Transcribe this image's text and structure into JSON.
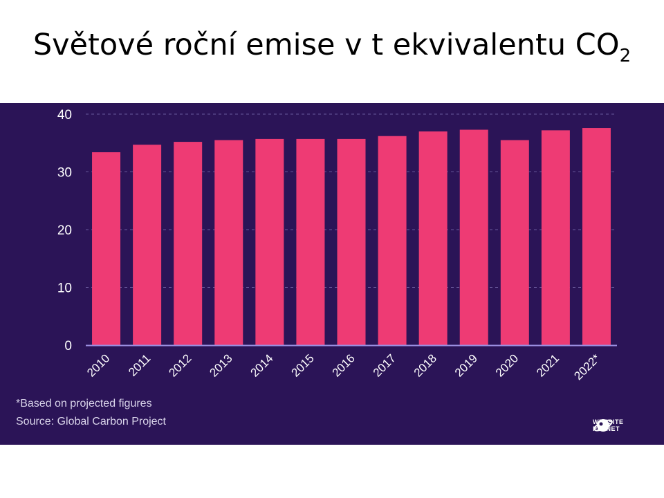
{
  "slide": {
    "title_main": "Světové roční emise v t ekvivalentu CO",
    "title_subscript": "2"
  },
  "chart_data": {
    "type": "bar",
    "categories": [
      "2010",
      "2011",
      "2012",
      "2013",
      "2014",
      "2015",
      "2016",
      "2017",
      "2018",
      "2019",
      "2020",
      "2021",
      "2022*"
    ],
    "values": [
      33.4,
      34.7,
      35.2,
      35.5,
      35.7,
      35.7,
      35.7,
      36.2,
      37.0,
      37.3,
      35.5,
      37.2,
      37.6
    ],
    "ylim": [
      0,
      40
    ],
    "yticks": [
      "0",
      "10",
      "20",
      "30",
      "40"
    ],
    "grid": true,
    "bar_color": "#ee3b74",
    "background_color": "#2b1457",
    "axis_color": "#9b8ee0"
  },
  "footnotes": {
    "projection_note": "*Based on projected figures",
    "source": "Source: Global Carbon Project"
  },
  "logo": {
    "line1": "WEBSITE",
    "line2": "PLANET",
    "icon": "planet-icon"
  }
}
